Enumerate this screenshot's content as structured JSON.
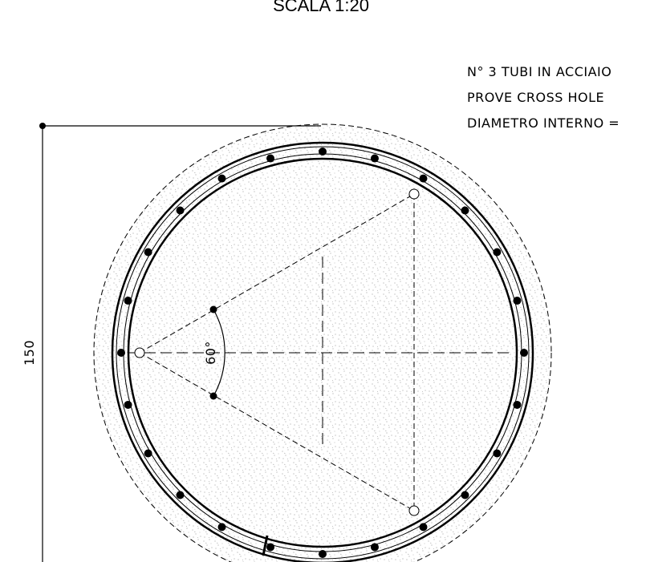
{
  "title": "SCALA 1:20",
  "note": [
    "N° 3 TUBI IN ACCIAIO",
    "PROVE CROSS HOLE",
    "DIAMETRO INTERNO ="
  ],
  "dimension": "150",
  "angle": "60°"
}
